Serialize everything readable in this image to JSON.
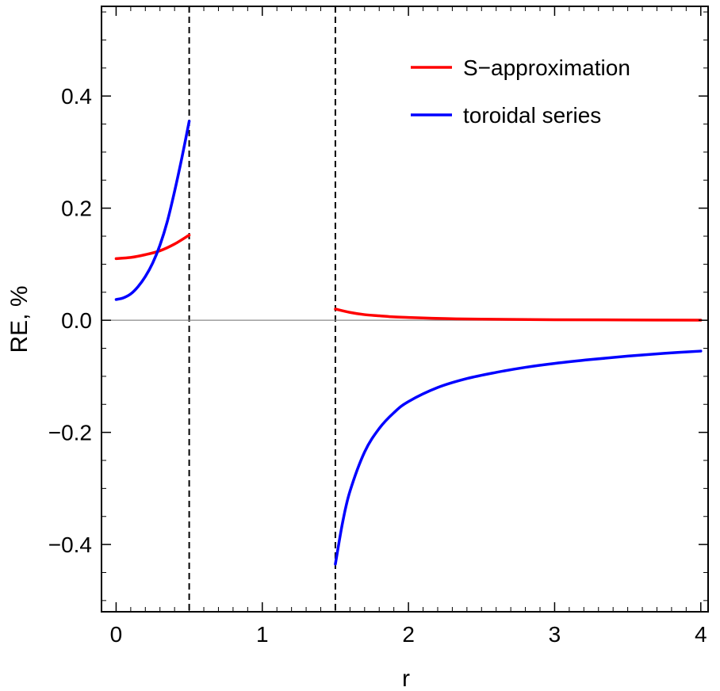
{
  "chart_data": {
    "type": "line",
    "title": "",
    "xlabel": "r",
    "ylabel": "RE, %",
    "xlim": [
      -0.1,
      4.05
    ],
    "ylim": [
      -0.52,
      0.56
    ],
    "x_ticks": [
      0,
      1,
      2,
      3,
      4
    ],
    "x_tick_labels": [
      "0",
      "1",
      "2",
      "3",
      "4"
    ],
    "y_ticks": [
      -0.4,
      -0.2,
      0.0,
      0.2,
      0.4
    ],
    "y_tick_labels": [
      "−0.4",
      "−0.2",
      "0.0",
      "0.2",
      "0.4"
    ],
    "reference_lines": [
      {
        "orientation": "vertical",
        "x": 0.5,
        "style": "dashed",
        "color": "#000000"
      },
      {
        "orientation": "vertical",
        "x": 1.5,
        "style": "dashed",
        "color": "#000000"
      },
      {
        "orientation": "horizontal",
        "y": 0.0,
        "style": "solid",
        "color": "#888888"
      }
    ],
    "legend_position": "top-right",
    "series": [
      {
        "name": "S−approximation",
        "color": "#ff0000",
        "segments": [
          {
            "x": [
              0,
              0.1,
              0.2,
              0.3,
              0.4,
              0.5
            ],
            "y": [
              0.11,
              0.112,
              0.117,
              0.124,
              0.136,
              0.152
            ]
          },
          {
            "x": [
              1.5,
              1.6,
              1.7,
              1.8,
              1.9,
              2.0,
              2.25,
              2.5,
              3.0,
              3.5,
              4.0
            ],
            "y": [
              0.02,
              0.014,
              0.01,
              0.008,
              0.006,
              0.005,
              0.003,
              0.002,
              0.001,
              0.0005,
              0.0002
            ]
          }
        ]
      },
      {
        "name": "toroidal series",
        "color": "#0000ff",
        "segments": [
          {
            "x": [
              0,
              0.05,
              0.1,
              0.15,
              0.2,
              0.25,
              0.3,
              0.35,
              0.4,
              0.45,
              0.5
            ],
            "y": [
              0.037,
              0.04,
              0.047,
              0.06,
              0.078,
              0.102,
              0.134,
              0.176,
              0.23,
              0.29,
              0.355
            ]
          },
          {
            "x": [
              1.5,
              1.55,
              1.6,
              1.7,
              1.8,
              1.9,
              2.0,
              2.2,
              2.4,
              2.6,
              2.8,
              3.0,
              3.25,
              3.5,
              3.75,
              4.0
            ],
            "y": [
              -0.435,
              -0.36,
              -0.305,
              -0.235,
              -0.193,
              -0.165,
              -0.145,
              -0.12,
              -0.104,
              -0.093,
              -0.084,
              -0.077,
              -0.07,
              -0.064,
              -0.059,
              -0.055
            ]
          }
        ]
      }
    ]
  }
}
